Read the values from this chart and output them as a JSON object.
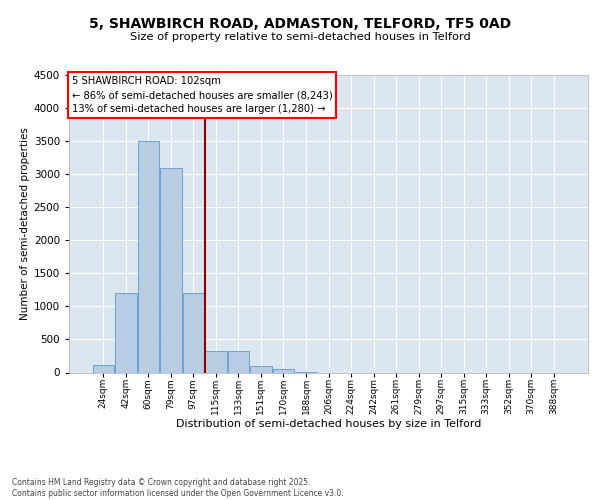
{
  "title_line1": "5, SHAWBIRCH ROAD, ADMASTON, TELFORD, TF5 0AD",
  "title_line2": "Size of property relative to semi-detached houses in Telford",
  "xlabel": "Distribution of semi-detached houses by size in Telford",
  "ylabel": "Number of semi-detached properties",
  "bar_color": "#b8cce4",
  "bar_edge_color": "#5b9bd5",
  "plot_bg_color": "#dce6f1",
  "grid_color": "#c8d8e8",
  "categories": [
    "24sqm",
    "42sqm",
    "60sqm",
    "79sqm",
    "97sqm",
    "115sqm",
    "133sqm",
    "151sqm",
    "170sqm",
    "188sqm",
    "206sqm",
    "224sqm",
    "242sqm",
    "261sqm",
    "279sqm",
    "297sqm",
    "315sqm",
    "333sqm",
    "352sqm",
    "370sqm",
    "388sqm"
  ],
  "values": [
    110,
    1200,
    3500,
    3100,
    1200,
    330,
    330,
    100,
    55,
    10,
    0,
    0,
    0,
    0,
    0,
    0,
    0,
    0,
    0,
    0,
    0
  ],
  "ylim": [
    0,
    4500
  ],
  "yticks": [
    0,
    500,
    1000,
    1500,
    2000,
    2500,
    3000,
    3500,
    4000,
    4500
  ],
  "red_line_x": 4.5,
  "annotation_line1": "5 SHAWBIRCH ROAD: 102sqm",
  "annotation_line2": "← 86% of semi-detached houses are smaller (8,243)",
  "annotation_line3": "13% of semi-detached houses are larger (1,280) →",
  "footer_line1": "Contains HM Land Registry data © Crown copyright and database right 2025.",
  "footer_line2": "Contains public sector information licensed under the Open Government Licence v3.0."
}
